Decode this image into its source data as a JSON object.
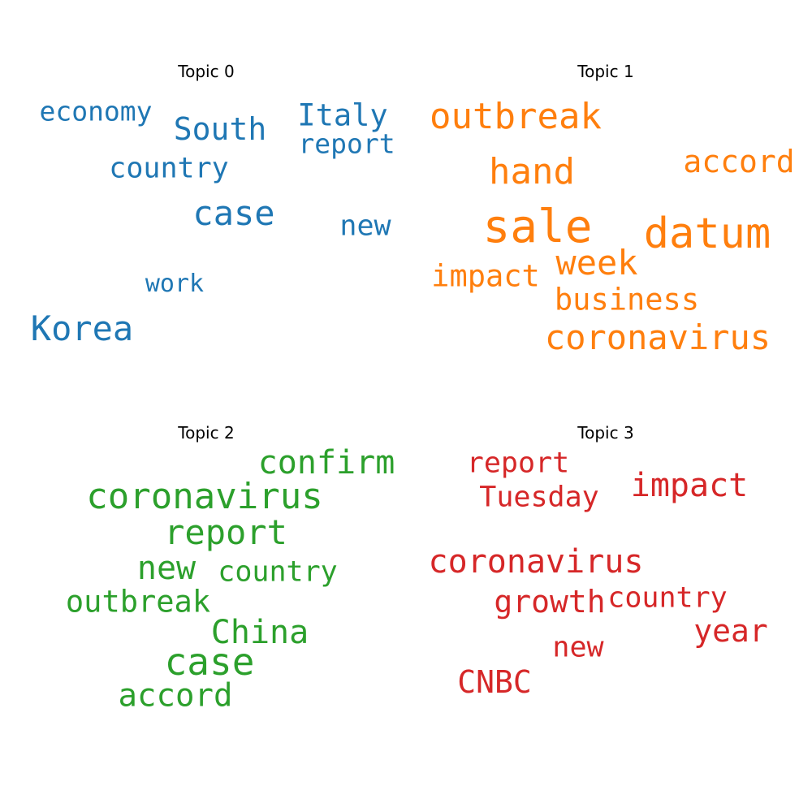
{
  "chart_data": [
    {
      "type": "wordcloud",
      "title": "Topic 0",
      "color": "#1f77b4",
      "words": [
        {
          "text": "economy"
        },
        {
          "text": "South"
        },
        {
          "text": "Italy"
        },
        {
          "text": "report"
        },
        {
          "text": "country"
        },
        {
          "text": "case"
        },
        {
          "text": "new"
        },
        {
          "text": "work"
        },
        {
          "text": "Korea"
        }
      ]
    },
    {
      "type": "wordcloud",
      "title": "Topic 1",
      "color": "#ff7f0e",
      "words": [
        {
          "text": "outbreak"
        },
        {
          "text": "hand"
        },
        {
          "text": "accord"
        },
        {
          "text": "sale"
        },
        {
          "text": "datum"
        },
        {
          "text": "week"
        },
        {
          "text": "impact"
        },
        {
          "text": "business"
        },
        {
          "text": "coronavirus"
        }
      ]
    },
    {
      "type": "wordcloud",
      "title": "Topic 2",
      "color": "#2ca02c",
      "words": [
        {
          "text": "confirm"
        },
        {
          "text": "coronavirus"
        },
        {
          "text": "report"
        },
        {
          "text": "new"
        },
        {
          "text": "country"
        },
        {
          "text": "outbreak"
        },
        {
          "text": "China"
        },
        {
          "text": "case"
        },
        {
          "text": "accord"
        }
      ]
    },
    {
      "type": "wordcloud",
      "title": "Topic 3",
      "color": "#d62728",
      "words": [
        {
          "text": "report"
        },
        {
          "text": "Tuesday"
        },
        {
          "text": "impact"
        },
        {
          "text": "coronavirus"
        },
        {
          "text": "growth"
        },
        {
          "text": "country"
        },
        {
          "text": "year"
        },
        {
          "text": "new"
        },
        {
          "text": "CNBC"
        }
      ]
    }
  ]
}
